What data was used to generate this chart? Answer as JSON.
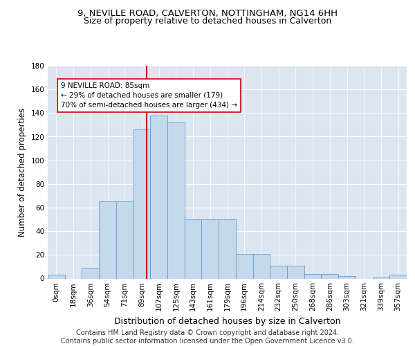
{
  "title": "9, NEVILLE ROAD, CALVERTON, NOTTINGHAM, NG14 6HH",
  "subtitle": "Size of property relative to detached houses in Calverton",
  "xlabel": "Distribution of detached houses by size in Calverton",
  "ylabel": "Number of detached properties",
  "bar_labels": [
    "0sqm",
    "18sqm",
    "36sqm",
    "54sqm",
    "71sqm",
    "89sqm",
    "107sqm",
    "125sqm",
    "143sqm",
    "161sqm",
    "179sqm",
    "196sqm",
    "214sqm",
    "232sqm",
    "250sqm",
    "268sqm",
    "286sqm",
    "303sqm",
    "321sqm",
    "339sqm",
    "357sqm"
  ],
  "bar_values": [
    3,
    0,
    9,
    65,
    65,
    126,
    138,
    132,
    50,
    50,
    50,
    21,
    21,
    11,
    11,
    4,
    4,
    2,
    0,
    1,
    3
  ],
  "bar_color": "#c5d9ed",
  "bar_edge_color": "#6699cc",
  "background_color": "#dce6f1",
  "grid_color": "#ffffff",
  "vline_color": "#cc0000",
  "annotation_text": "9 NEVILLE ROAD: 85sqm\n← 29% of detached houses are smaller (179)\n70% of semi-detached houses are larger (434) →",
  "ylim": [
    0,
    180
  ],
  "yticks": [
    0,
    20,
    40,
    60,
    80,
    100,
    120,
    140,
    160,
    180
  ],
  "footer_line1": "Contains HM Land Registry data © Crown copyright and database right 2024.",
  "footer_line2": "Contains public sector information licensed under the Open Government Licence v3.0.",
  "title_fontsize": 9.5,
  "subtitle_fontsize": 9,
  "xlabel_fontsize": 9,
  "ylabel_fontsize": 8.5,
  "tick_fontsize": 7.5,
  "footer_fontsize": 7
}
